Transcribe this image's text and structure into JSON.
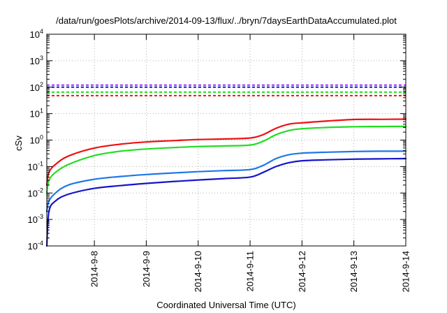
{
  "chart_data": {
    "type": "line",
    "title": "/data/run/goesPlots/archive/2014-09-13/flux/../bryn/7daysEarthDataAccumulated.plot",
    "xlabel": "Coordinated Universal Time (UTC)",
    "ylabel": "cSv",
    "y_scale": "log",
    "ylim": [
      0.0001,
      10000
    ],
    "y_ticks": [
      {
        "value": 0.0001,
        "base": "10",
        "exp": "-4"
      },
      {
        "value": 0.001,
        "base": "10",
        "exp": "-3"
      },
      {
        "value": 0.01,
        "base": "10",
        "exp": "-2"
      },
      {
        "value": 0.1,
        "base": "10",
        "exp": "-1"
      },
      {
        "value": 1,
        "base": "10",
        "exp": "0"
      },
      {
        "value": 10,
        "base": "10",
        "exp": "1"
      },
      {
        "value": 100,
        "base": "10",
        "exp": "2"
      },
      {
        "value": 1000,
        "base": "10",
        "exp": "3"
      },
      {
        "value": 10000,
        "base": "10",
        "exp": "4"
      }
    ],
    "xlim": [
      "2014-09-07 02:00",
      "2014-09-14 00:00"
    ],
    "x_ticks": [
      "2014-9-8",
      "2014-9-9",
      "2014-9-10",
      "2014-9-11",
      "2014-9-12",
      "2014-9-13",
      "2014-9-14"
    ],
    "grid": true,
    "legend": "none",
    "thresholds": [
      {
        "value": 120,
        "color": "#9933ff"
      },
      {
        "value": 100,
        "color": "#1a1acc"
      },
      {
        "value": 65,
        "color": "#22dd22"
      },
      {
        "value": 48,
        "color": "#ee1111"
      }
    ],
    "series": [
      {
        "color": "#ee1111",
        "x": [
          "2014-09-07 02:00",
          "2014-09-07 03:00",
          "2014-09-07 06:00",
          "2014-09-07 12:00",
          "2014-09-08 00:00",
          "2014-09-08 12:00",
          "2014-09-09 00:00",
          "2014-09-09 12:00",
          "2014-09-10 00:00",
          "2014-09-10 12:00",
          "2014-09-11 00:00",
          "2014-09-11 06:00",
          "2014-09-11 12:00",
          "2014-09-11 18:00",
          "2014-09-12 00:00",
          "2014-09-12 12:00",
          "2014-09-13 00:00",
          "2014-09-13 12:00",
          "2014-09-14 00:00"
        ],
        "y": [
          0.02,
          0.06,
          0.12,
          0.25,
          0.5,
          0.7,
          0.85,
          0.95,
          1.05,
          1.1,
          1.2,
          1.6,
          2.8,
          4.0,
          4.5,
          5.3,
          6.0,
          6.1,
          6.2
        ]
      },
      {
        "color": "#22dd22",
        "x": [
          "2014-09-07 02:00",
          "2014-09-07 03:00",
          "2014-09-07 06:00",
          "2014-09-07 12:00",
          "2014-09-08 00:00",
          "2014-09-08 12:00",
          "2014-09-09 00:00",
          "2014-09-09 12:00",
          "2014-09-10 00:00",
          "2014-09-10 12:00",
          "2014-09-11 00:00",
          "2014-09-11 06:00",
          "2014-09-11 12:00",
          "2014-09-11 18:00",
          "2014-09-12 00:00",
          "2014-09-12 12:00",
          "2014-09-13 00:00",
          "2014-09-13 12:00",
          "2014-09-14 00:00"
        ],
        "y": [
          0.01,
          0.03,
          0.06,
          0.12,
          0.26,
          0.38,
          0.46,
          0.52,
          0.57,
          0.6,
          0.65,
          0.9,
          1.6,
          2.3,
          2.7,
          3.0,
          3.2,
          3.25,
          3.3
        ]
      },
      {
        "color": "#1e78e6",
        "x": [
          "2014-09-07 02:00",
          "2014-09-07 03:00",
          "2014-09-07 06:00",
          "2014-09-07 12:00",
          "2014-09-08 00:00",
          "2014-09-08 12:00",
          "2014-09-09 00:00",
          "2014-09-09 12:00",
          "2014-09-10 00:00",
          "2014-09-10 12:00",
          "2014-09-11 00:00",
          "2014-09-11 06:00",
          "2014-09-11 12:00",
          "2014-09-11 18:00",
          "2014-09-12 00:00",
          "2014-09-12 12:00",
          "2014-09-13 00:00",
          "2014-09-13 12:00",
          "2014-09-14 00:00"
        ],
        "y": [
          0.002,
          0.005,
          0.01,
          0.02,
          0.033,
          0.042,
          0.05,
          0.057,
          0.064,
          0.07,
          0.077,
          0.11,
          0.2,
          0.28,
          0.32,
          0.35,
          0.37,
          0.38,
          0.38
        ]
      },
      {
        "color": "#1515c8",
        "x": [
          "2014-09-07 02:00",
          "2014-09-07 03:00",
          "2014-09-07 06:00",
          "2014-09-07 12:00",
          "2014-09-08 00:00",
          "2014-09-08 12:00",
          "2014-09-09 00:00",
          "2014-09-09 12:00",
          "2014-09-10 00:00",
          "2014-09-10 12:00",
          "2014-09-11 00:00",
          "2014-09-11 06:00",
          "2014-09-11 12:00",
          "2014-09-11 18:00",
          "2014-09-12 00:00",
          "2014-09-12 12:00",
          "2014-09-13 00:00",
          "2014-09-13 12:00",
          "2014-09-14 00:00"
        ],
        "y": [
          0.0001,
          0.002,
          0.005,
          0.009,
          0.015,
          0.019,
          0.023,
          0.027,
          0.031,
          0.035,
          0.04,
          0.06,
          0.1,
          0.14,
          0.165,
          0.18,
          0.19,
          0.195,
          0.2
        ]
      }
    ]
  }
}
